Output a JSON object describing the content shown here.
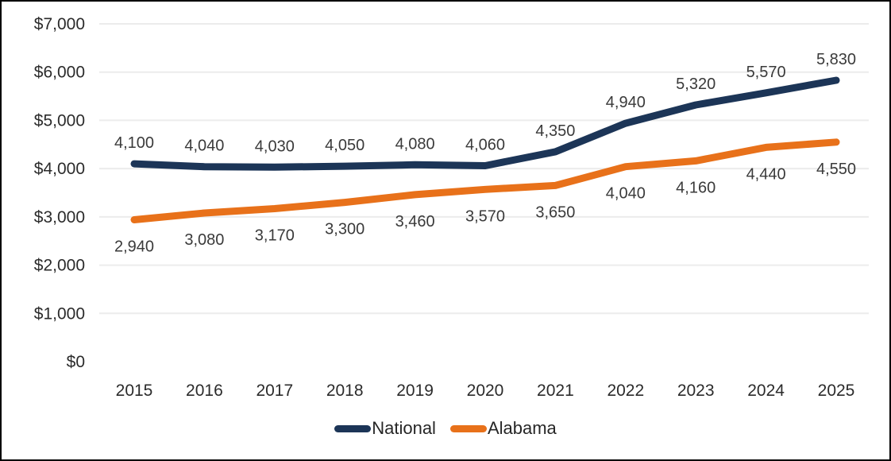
{
  "chart_data": {
    "type": "line",
    "title": "",
    "xlabel": "",
    "ylabel": "",
    "x": [
      2015,
      2016,
      2017,
      2018,
      2019,
      2020,
      2021,
      2022,
      2023,
      2024,
      2025
    ],
    "series": [
      {
        "name": "National",
        "color": "#1c3557",
        "values": [
          4100,
          4040,
          4030,
          4050,
          4080,
          4060,
          4350,
          4940,
          5320,
          5570,
          5830
        ],
        "labels": [
          "4,100",
          "4,040",
          "4,030",
          "4,050",
          "4,080",
          "4,060",
          "4,350",
          "4,940",
          "5,320",
          "5,570",
          "5,830"
        ],
        "label_position": "above"
      },
      {
        "name": "Alabama",
        "color": "#e8711a",
        "values": [
          2940,
          3080,
          3170,
          3300,
          3460,
          3570,
          3650,
          4040,
          4160,
          4440,
          4550
        ],
        "labels": [
          "2,940",
          "3,080",
          "3,170",
          "3,300",
          "3,460",
          "3,570",
          "3,650",
          "4,040",
          "4,160",
          "4,440",
          "4,550"
        ],
        "label_position": "below"
      }
    ],
    "y_axis": {
      "min": 0,
      "max": 7000,
      "step": 1000,
      "tick_labels": [
        "$0",
        "$1,000",
        "$2,000",
        "$3,000",
        "$4,000",
        "$5,000",
        "$6,000",
        "$7,000"
      ]
    },
    "grid": "horizontal",
    "gridline_color": "#ececec",
    "legend_position": "bottom",
    "legend": [
      "National",
      "Alabama"
    ]
  }
}
